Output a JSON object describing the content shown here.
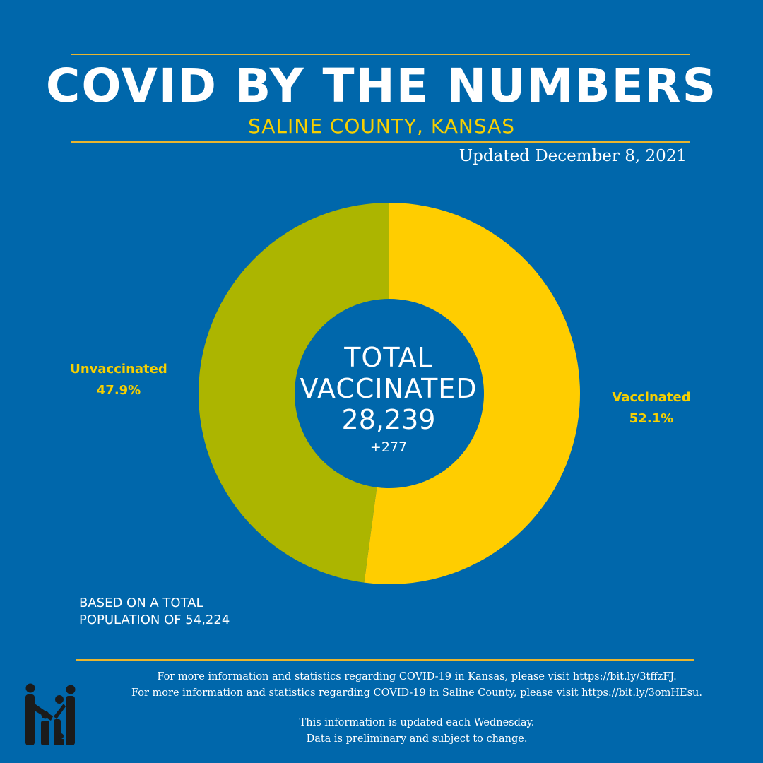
{
  "header": {
    "title": "COVID BY THE NUMBERS",
    "subtitle": "SALINE COUNTY, KANSAS",
    "updated": "Updated December 8, 2021"
  },
  "center": {
    "line1": "TOTAL",
    "line2": "VACCINATED",
    "total": "28,239",
    "change": "+277"
  },
  "labels": {
    "unvaccinated_name": "Unvaccinated",
    "unvaccinated_pct": "47.9%",
    "vaccinated_name": "Vaccinated",
    "vaccinated_pct": "52.1%"
  },
  "footnote": {
    "line1": "BASED ON A TOTAL",
    "line2": "POPULATION OF 54,224"
  },
  "info": {
    "line1": "For more information and statistics regarding COVID-19 in Kansas, please visit https://bit.ly/3tffzFJ.",
    "line2": "For more information and statistics regarding COVID-19 in Saline County, please visit  https://bit.ly/3omHEsu.",
    "line3": "This information is updated each Wednesday.",
    "line4": "Data is preliminary and subject to change."
  },
  "colors": {
    "background": "#0067ab",
    "vaccinated": "#ffcd00",
    "unvaccinated": "#acb500",
    "accent": "#e9b52f"
  },
  "logo_icon": "family-logo-icon",
  "chart_data": {
    "type": "pie",
    "style": "donut",
    "categories": [
      "Vaccinated",
      "Unvaccinated"
    ],
    "values": [
      52.1,
      47.9
    ],
    "unit": "%",
    "total_population": 54224,
    "total_vaccinated": 28239,
    "change": 277
  }
}
